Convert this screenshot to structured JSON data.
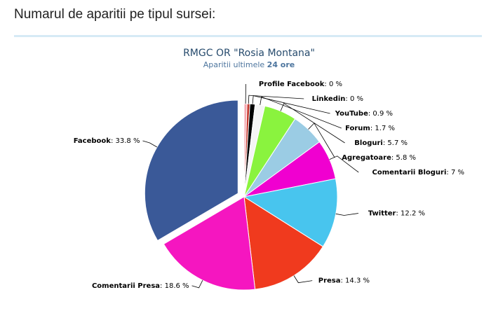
{
  "heading": "Numarul de aparitii pe tipul sursei:",
  "chart_data": {
    "type": "pie",
    "title": "RMGC OR \"Rosia Montana\"",
    "subtitle_prefix": "Aparitii ultimele ",
    "subtitle_highlight": "24 ore",
    "slices": [
      {
        "name": "Profile Facebook",
        "value": 0,
        "value_label": "0 %",
        "color": "#f4a7b0"
      },
      {
        "name": "Linkedin",
        "value": 0,
        "value_label": "0 %",
        "color": "#c43a30"
      },
      {
        "name": "YouTube",
        "value": 0.9,
        "value_label": "0.9 %",
        "color": "#000000"
      },
      {
        "name": "Forum",
        "value": 1.7,
        "value_label": "1.7 %",
        "color": "#f5f5f5"
      },
      {
        "name": "Bloguri",
        "value": 5.7,
        "value_label": "5.7 %",
        "color": "#8af33e"
      },
      {
        "name": "Agregatoare",
        "value": 5.8,
        "value_label": "5.8 %",
        "color": "#9bcce4"
      },
      {
        "name": "Comentarii Bloguri",
        "value": 7,
        "value_label": "7 %",
        "color": "#f000d0"
      },
      {
        "name": "Twitter",
        "value": 12.2,
        "value_label": "12.2 %",
        "color": "#48c5ee"
      },
      {
        "name": "Presa",
        "value": 14.3,
        "value_label": "14.3 %",
        "color": "#f03a1e"
      },
      {
        "name": "Comentarii Presa",
        "value": 18.6,
        "value_label": "18.6 %",
        "color": "#f516c0"
      },
      {
        "name": "Facebook",
        "value": 33.8,
        "value_label": "33.8 %",
        "color": "#3a5998"
      }
    ],
    "exploded_slice": "Facebook",
    "label_separator": ": "
  }
}
